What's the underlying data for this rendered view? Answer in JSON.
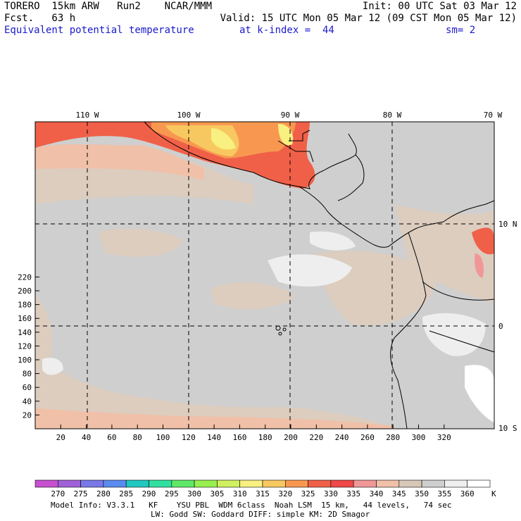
{
  "header": {
    "model": "TORERO  15km ARW   Run2    NCAR/MMM",
    "init": "Init: 00 UTC Sat 03 Mar 12",
    "fcst": "Fcst.   63 h",
    "valid": "Valid: 15 UTC Mon 05 Mar 12 (09 CST Mon 05 Mar 12)",
    "field": "Equivalent potential temperature",
    "level": "at k-index =  44",
    "smooth": "sm= 2"
  },
  "map": {
    "lon_labels": [
      "110 W",
      "100 W",
      "90 W",
      "80 W",
      "70 W"
    ],
    "lat_labels": [
      "10 N",
      "0",
      "10 S"
    ],
    "x_ticks": [
      "20",
      "40",
      "60",
      "80",
      "100",
      "120",
      "140",
      "160",
      "180",
      "200",
      "220",
      "240",
      "260",
      "280",
      "300",
      "320"
    ],
    "y_ticks": [
      "20",
      "40",
      "60",
      "80",
      "100",
      "120",
      "140",
      "160",
      "180",
      "200",
      "220"
    ],
    "background_color": "#cfcfcf"
  },
  "colorbar": {
    "unit": "K",
    "levels": [
      "270",
      "275",
      "280",
      "285",
      "290",
      "295",
      "300",
      "305",
      "310",
      "315",
      "320",
      "325",
      "330",
      "335",
      "340",
      "345",
      "350",
      "355",
      "360"
    ],
    "colors": [
      "#c850d0",
      "#a060d8",
      "#7878e8",
      "#5a8cf0",
      "#20c8c0",
      "#30e0a0",
      "#60e868",
      "#98f050",
      "#d0f060",
      "#f8f080",
      "#f8c860",
      "#f89850",
      "#f06048",
      "#f04848",
      "#f09898",
      "#f0c0a8",
      "#d8c8b8",
      "#cfcfcf",
      "#eeeeee",
      "#ffffff"
    ]
  },
  "footer": {
    "line1": "Model Info: V3.3.1   KF    YSU PBL  WDM 6class  Noah LSM  15 km,   44 levels,   74 sec",
    "line2": "LW: Godd SW: Goddard DIFF: simple KM: 2D Smagor"
  }
}
